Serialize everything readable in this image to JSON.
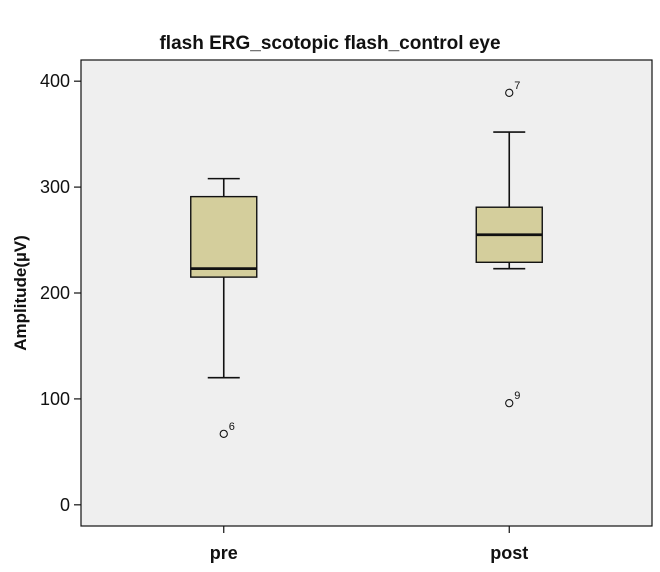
{
  "chart_data": {
    "type": "boxplot",
    "title": "flash ERG_scotopic flash_control eye",
    "xlabel": "",
    "ylabel": "Amplitude(µV)",
    "ylim": [
      -20,
      420
    ],
    "yticks": [
      0,
      100,
      200,
      300,
      400
    ],
    "categories": [
      "pre",
      "post"
    ],
    "boxes": [
      {
        "category": "pre",
        "whisker_low": 120,
        "q1": 215,
        "median": 223,
        "q3": 291,
        "whisker_high": 308,
        "outliers": [
          {
            "value": 67,
            "label": "6"
          }
        ]
      },
      {
        "category": "post",
        "whisker_low": 223,
        "q1": 229,
        "median": 255,
        "q3": 281,
        "whisker_high": 352,
        "outliers": [
          {
            "value": 389,
            "label": "7"
          },
          {
            "value": 96,
            "label": "9"
          }
        ]
      }
    ],
    "grid": false,
    "legend": "none",
    "colors": {
      "plot_background": "#efefef",
      "box_fill": "#d4ce9c",
      "stroke": "#111111"
    }
  }
}
